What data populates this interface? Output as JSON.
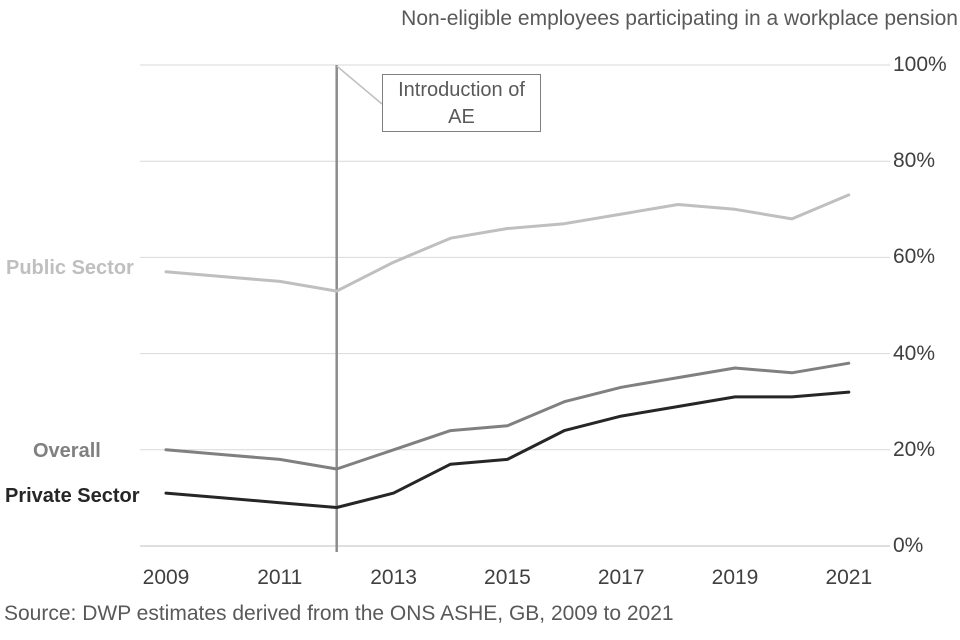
{
  "title": "Non-eligible employees participating in a workplace pension",
  "source": "Source: DWP estimates derived from the ONS ASHE, GB, 2009 to 2021",
  "annotation": {
    "line1": "Introduction of",
    "line2": "AE",
    "year": 2012
  },
  "colors": {
    "gridline": "#d9d9d9",
    "axis_line": "#bfbfbf",
    "event_line": "#8c8c8c",
    "leader_line": "#bfbfbf",
    "annotation_border": "#7f7f7f",
    "tick_text": "#404040",
    "muted_text": "#595959"
  },
  "chart_data": {
    "type": "line",
    "title": "Non-eligible employees participating in a workplace pension",
    "x": [
      2009,
      2010,
      2011,
      2012,
      2013,
      2014,
      2015,
      2016,
      2017,
      2018,
      2019,
      2020,
      2021
    ],
    "series": [
      {
        "name": "Public Sector",
        "color": "#bfbfbf",
        "values": [
          57,
          56,
          55,
          53,
          59,
          64,
          66,
          67,
          69,
          71,
          70,
          68,
          73
        ]
      },
      {
        "name": "Overall",
        "color": "#808080",
        "values": [
          20,
          19,
          18,
          16,
          20,
          24,
          25,
          30,
          33,
          35,
          37,
          36,
          38
        ]
      },
      {
        "name": "Private Sector",
        "color": "#262626",
        "values": [
          11,
          10,
          9,
          8,
          11,
          17,
          18,
          24,
          27,
          29,
          31,
          31,
          32
        ]
      }
    ],
    "xticks": [
      "2009",
      "2011",
      "2013",
      "2015",
      "2017",
      "2019",
      "2021"
    ],
    "yticks": [
      "100%",
      "80%",
      "60%",
      "40%",
      "20%",
      "0%"
    ],
    "ytick_values": [
      100,
      80,
      60,
      40,
      20,
      0
    ],
    "ylim": [
      0,
      100
    ],
    "grid": "horizontal",
    "legend_position": "left-of-lines",
    "annotation_text": "Introduction of AE",
    "annotation_x": 2012
  }
}
